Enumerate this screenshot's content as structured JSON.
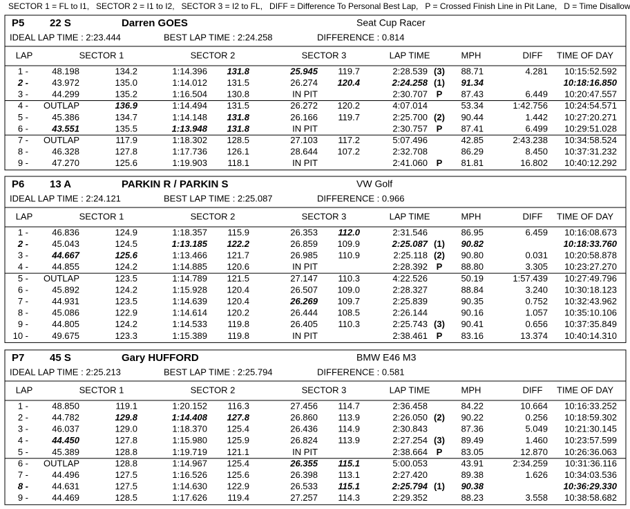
{
  "legend": "SECTOR 1 = FL to I1,   SECTOR 2 = I1 to I2,   SECTOR 3 = I2 to FL,   DIFF = Difference To Personal Best Lap,   P = Crossed Finish Line in Pit Lane,   D = Time Disallowed",
  "columns": [
    "LAP",
    "SECTOR 1",
    "SECTOR 2",
    "SECTOR 3",
    "LAP TIME",
    "MPH",
    "DIFF",
    "TIME OF DAY"
  ],
  "blocks": [
    {
      "position": "P5",
      "number": "22 S",
      "driver": "Darren GOES",
      "car": "Seat Cup Racer",
      "ideal": "IDEAL LAP TIME : 2:23.444",
      "best": "BEST LAP TIME : 2:24.258",
      "difference": "DIFFERENCE : 0.814",
      "rows": [
        {
          "cells": [
            "1 -",
            "48.198",
            "134.2",
            "1:14.396",
            "131.8",
            "25.945",
            "119.7",
            "2:28.539",
            "(3)",
            "88.71",
            "4.281",
            "10:15:52.592"
          ],
          "bold": [
            4,
            5
          ]
        },
        {
          "cells": [
            "2 -",
            "43.972",
            "135.0",
            "1:14.012",
            "131.5",
            "26.274",
            "120.4",
            "2:24.258",
            "(1)",
            "91.34",
            null,
            "10:18:16.850"
          ],
          "bold": [
            0,
            6,
            7,
            9,
            11
          ]
        },
        {
          "cells": [
            "3 -",
            "44.299",
            "135.2",
            "1:16.504",
            "130.8",
            "IN PIT",
            null,
            "2:30.707",
            "P",
            "87.43",
            "6.449",
            "10:20:47.557"
          ],
          "bold": []
        },
        {
          "cells": [
            "4 -",
            "OUTLAP",
            "136.9",
            "1:14.494",
            "131.5",
            "26.272",
            "120.2",
            "4:07.014",
            null,
            "53.34",
            "1:42.756",
            "10:24:54.571"
          ],
          "bold": [
            2
          ]
        },
        {
          "cells": [
            "5 -",
            "45.386",
            "134.7",
            "1:14.148",
            "131.8",
            "26.166",
            "119.7",
            "2:25.700",
            "(2)",
            "90.44",
            "1.442",
            "10:27:20.271"
          ],
          "bold": [
            4
          ]
        },
        {
          "cells": [
            "6 -",
            "43.551",
            "135.5",
            "1:13.948",
            "131.8",
            "IN PIT",
            null,
            "2:30.757",
            "P",
            "87.41",
            "6.499",
            "10:29:51.028"
          ],
          "bold": [
            1,
            3,
            4
          ]
        },
        {
          "cells": [
            "7 -",
            "OUTLAP",
            "117.9",
            "1:18.302",
            "128.5",
            "27.103",
            "117.2",
            "5:07.496",
            null,
            "42.85",
            "2:43.238",
            "10:34:58.524"
          ],
          "bold": []
        },
        {
          "cells": [
            "8 -",
            "46.328",
            "127.8",
            "1:17.736",
            "126.1",
            "28.644",
            "107.2",
            "2:32.708",
            null,
            "86.29",
            "8.450",
            "10:37:31.232"
          ],
          "bold": []
        },
        {
          "cells": [
            "9 -",
            "47.270",
            "125.6",
            "1:19.903",
            "118.1",
            "IN PIT",
            null,
            "2:41.060",
            "P",
            "81.81",
            "16.802",
            "10:40:12.292"
          ],
          "bold": []
        }
      ]
    },
    {
      "position": "P6",
      "number": "13 A",
      "driver": "PARKIN R / PARKIN S",
      "car": "VW Golf",
      "ideal": "IDEAL LAP TIME : 2:24.121",
      "best": "BEST LAP TIME : 2:25.087",
      "difference": "DIFFERENCE : 0.966",
      "rows": [
        {
          "cells": [
            "1 -",
            "46.836",
            "124.9",
            "1:18.357",
            "115.9",
            "26.353",
            "112.0",
            "2:31.546",
            null,
            "86.95",
            "6.459",
            "10:16:08.673"
          ],
          "bold": [
            6
          ]
        },
        {
          "cells": [
            "2 -",
            "45.043",
            "124.5",
            "1:13.185",
            "122.2",
            "26.859",
            "109.9",
            "2:25.087",
            "(1)",
            "90.82",
            null,
            "10:18:33.760"
          ],
          "bold": [
            0,
            3,
            4,
            7,
            9,
            11
          ]
        },
        {
          "cells": [
            "3 -",
            "44.667",
            "125.6",
            "1:13.466",
            "121.7",
            "26.985",
            "110.9",
            "2:25.118",
            "(2)",
            "90.80",
            "0.031",
            "10:20:58.878"
          ],
          "bold": [
            1,
            2
          ]
        },
        {
          "cells": [
            "4 -",
            "44.855",
            "124.2",
            "1:14.885",
            "120.6",
            "IN PIT",
            null,
            "2:28.392",
            "P",
            "88.80",
            "3.305",
            "10:23:27.270"
          ],
          "bold": []
        },
        {
          "cells": [
            "5 -",
            "OUTLAP",
            "123.5",
            "1:14.789",
            "121.5",
            "27.147",
            "110.3",
            "4:22.526",
            null,
            "50.19",
            "1:57.439",
            "10:27:49.796"
          ],
          "bold": []
        },
        {
          "cells": [
            "6 -",
            "45.892",
            "124.2",
            "1:15.928",
            "120.4",
            "26.507",
            "109.0",
            "2:28.327",
            null,
            "88.84",
            "3.240",
            "10:30:18.123"
          ],
          "bold": []
        },
        {
          "cells": [
            "7 -",
            "44.931",
            "123.5",
            "1:14.639",
            "120.4",
            "26.269",
            "109.7",
            "2:25.839",
            null,
            "90.35",
            "0.752",
            "10:32:43.962"
          ],
          "bold": [
            5
          ]
        },
        {
          "cells": [
            "8 -",
            "45.086",
            "122.9",
            "1:14.614",
            "120.2",
            "26.444",
            "108.5",
            "2:26.144",
            null,
            "90.16",
            "1.057",
            "10:35:10.106"
          ],
          "bold": []
        },
        {
          "cells": [
            "9 -",
            "44.805",
            "124.2",
            "1:14.533",
            "119.8",
            "26.405",
            "110.3",
            "2:25.743",
            "(3)",
            "90.41",
            "0.656",
            "10:37:35.849"
          ],
          "bold": []
        },
        {
          "cells": [
            "10 -",
            "49.675",
            "123.3",
            "1:15.389",
            "119.8",
            "IN PIT",
            null,
            "2:38.461",
            "P",
            "83.16",
            "13.374",
            "10:40:14.310"
          ],
          "bold": []
        }
      ]
    },
    {
      "position": "P7",
      "number": "45 S",
      "driver": "Gary HUFFORD",
      "car": "BMW E46 M3",
      "ideal": "IDEAL LAP TIME : 2:25.213",
      "best": "BEST LAP TIME : 2:25.794",
      "difference": "DIFFERENCE : 0.581",
      "rows": [
        {
          "cells": [
            "1 -",
            "48.850",
            "119.1",
            "1:20.152",
            "116.3",
            "27.456",
            "114.7",
            "2:36.458",
            null,
            "84.22",
            "10.664",
            "10:16:33.252"
          ],
          "bold": []
        },
        {
          "cells": [
            "2 -",
            "44.782",
            "129.8",
            "1:14.408",
            "127.8",
            "26.860",
            "113.9",
            "2:26.050",
            "(2)",
            "90.22",
            "0.256",
            "10:18:59.302"
          ],
          "bold": [
            2,
            3,
            4
          ]
        },
        {
          "cells": [
            "3 -",
            "46.037",
            "129.0",
            "1:18.370",
            "125.4",
            "26.436",
            "114.9",
            "2:30.843",
            null,
            "87.36",
            "5.049",
            "10:21:30.145"
          ],
          "bold": []
        },
        {
          "cells": [
            "4 -",
            "44.450",
            "127.8",
            "1:15.980",
            "125.9",
            "26.824",
            "113.9",
            "2:27.254",
            "(3)",
            "89.49",
            "1.460",
            "10:23:57.599"
          ],
          "bold": [
            1
          ]
        },
        {
          "cells": [
            "5 -",
            "45.389",
            "128.8",
            "1:19.719",
            "121.1",
            "IN PIT",
            null,
            "2:38.664",
            "P",
            "83.05",
            "12.870",
            "10:26:36.063"
          ],
          "bold": []
        },
        {
          "cells": [
            "6 -",
            "OUTLAP",
            "128.8",
            "1:14.967",
            "125.4",
            "26.355",
            "115.1",
            "5:00.053",
            null,
            "43.91",
            "2:34.259",
            "10:31:36.116"
          ],
          "bold": [
            5,
            6
          ]
        },
        {
          "cells": [
            "7 -",
            "44.496",
            "127.5",
            "1:16.526",
            "125.6",
            "26.398",
            "113.1",
            "2:27.420",
            null,
            "89.38",
            "1.626",
            "10:34:03.536"
          ],
          "bold": []
        },
        {
          "cells": [
            "8 -",
            "44.631",
            "127.5",
            "1:14.630",
            "122.9",
            "26.533",
            "115.1",
            "2:25.794",
            "(1)",
            "90.38",
            null,
            "10:36:29.330"
          ],
          "bold": [
            0,
            6,
            7,
            9,
            11
          ]
        },
        {
          "cells": [
            "9 -",
            "44.469",
            "128.5",
            "1:17.626",
            "119.4",
            "27.257",
            "114.3",
            "2:29.352",
            null,
            "88.23",
            "3.558",
            "10:38:58.682"
          ],
          "bold": []
        }
      ]
    }
  ]
}
